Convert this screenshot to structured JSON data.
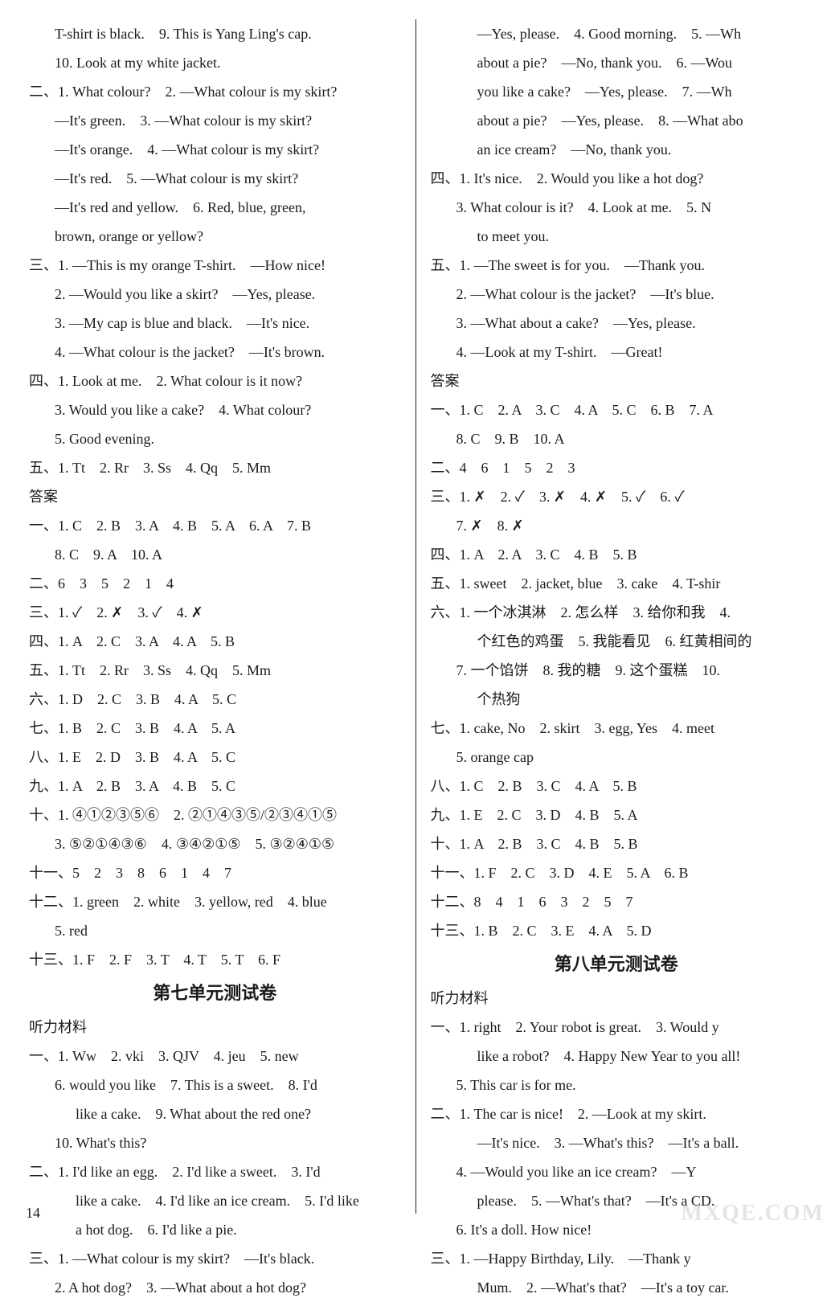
{
  "left": {
    "lines": [
      {
        "cls": "line noindent",
        "t": "T-shirt is black.　9. This is Yang Ling's cap."
      },
      {
        "cls": "line noindent",
        "t": "10. Look at my white jacket."
      },
      {
        "cls": "line",
        "t": "二、1. What colour?　2. —What colour is my skirt?"
      },
      {
        "cls": "line noindent",
        "t": "—It's green.　3. —What colour is my skirt?"
      },
      {
        "cls": "line noindent",
        "t": "—It's orange.　4. —What colour is my skirt?"
      },
      {
        "cls": "line noindent",
        "t": "—It's red.　5. —What colour is my skirt?"
      },
      {
        "cls": "line noindent",
        "t": "—It's red and yellow.　6. Red, blue, green,"
      },
      {
        "cls": "line noindent",
        "t": "brown, orange or yellow?"
      },
      {
        "cls": "line",
        "t": "三、1. —This is my orange T-shirt.　—How nice!"
      },
      {
        "cls": "line deep",
        "t": "2. —Would you like a skirt?　—Yes, please."
      },
      {
        "cls": "line deep",
        "t": "3. —My cap is blue and black.　—It's nice."
      },
      {
        "cls": "line deep",
        "t": "4. —What colour is the jacket?　—It's brown."
      },
      {
        "cls": "line",
        "t": "四、1. Look at me.　2. What colour is it now?"
      },
      {
        "cls": "line deep",
        "t": "3. Would you like a cake?　4. What colour?"
      },
      {
        "cls": "line deep",
        "t": "5. Good evening."
      },
      {
        "cls": "line",
        "t": "五、1. Tt　2. Rr　3. Ss　4. Qq　5. Mm"
      },
      {
        "cls": "subhead",
        "t": "答案"
      },
      {
        "cls": "line",
        "t": "一、1. C　2. B　3. A　4. B　5. A　6. A　7. B"
      },
      {
        "cls": "line deep",
        "t": "8. C　9. A　10. A"
      },
      {
        "cls": "line",
        "t": "二、6　3　5　2　1　4"
      },
      {
        "cls": "line",
        "t": "三、1. ✓　2. ✗　3. ✓　4. ✗"
      },
      {
        "cls": "line",
        "t": "四、1. A　2. C　3. A　4. A　5. B"
      },
      {
        "cls": "line",
        "t": "五、1. Tt　2. Rr　3. Ss　4. Qq　5. Mm"
      },
      {
        "cls": "line",
        "t": "六、1. D　2. C　3. B　4. A　5. C"
      },
      {
        "cls": "line",
        "t": "七、1. B　2. C　3. B　4. A　5. A"
      },
      {
        "cls": "line",
        "t": "八、1. E　2. D　3. B　4. A　5. C"
      },
      {
        "cls": "line",
        "t": "九、1. A　2. B　3. A　4. B　5. C"
      },
      {
        "cls": "line",
        "t": "十、1. ④①②③⑤⑥　2. ②①④③⑤/②③④①⑤"
      },
      {
        "cls": "line deep",
        "t": "3. ⑤②①④③⑥　4. ③④②①⑤　5. ③②④①⑤"
      },
      {
        "cls": "line",
        "t": "十一、5　2　3　8　6　1　4　7"
      },
      {
        "cls": "line",
        "t": "十二、1. green　2. white　3. yellow, red　4. blue"
      },
      {
        "cls": "line deep",
        "t": "5. red"
      },
      {
        "cls": "line",
        "t": "十三、1. F　2. F　3. T　4. T　5. T　6. F"
      },
      {
        "cls": "heading",
        "t": "第七单元测试卷"
      },
      {
        "cls": "subhead",
        "t": "听力材料"
      },
      {
        "cls": "line",
        "t": "一、1. Ww　2. vki　3. QJV　4. jeu　5. new"
      },
      {
        "cls": "line deep",
        "t": "6. would you like　7. This is a sweet.　8. I'd"
      },
      {
        "cls": "line deep2",
        "t": "like a cake.　9. What about the red one?"
      },
      {
        "cls": "line deep",
        "t": "10. What's this?"
      },
      {
        "cls": "line",
        "t": "二、1. I'd like an egg.　2. I'd like a sweet.　3. I'd"
      },
      {
        "cls": "line deep2",
        "t": "like a cake.　4. I'd like an ice cream.　5. I'd like"
      },
      {
        "cls": "line deep2",
        "t": "a hot dog.　6. I'd like a pie."
      },
      {
        "cls": "line",
        "t": "三、1. —What colour is my skirt?　—It's black."
      },
      {
        "cls": "line deep",
        "t": "2. A hot dog?　3. —What about a hot dog?"
      }
    ]
  },
  "right": {
    "lines": [
      {
        "cls": "line deep2",
        "t": "—Yes, please.　4. Good morning.　5. —Wh"
      },
      {
        "cls": "line deep2",
        "t": "about a pie?　—No, thank you.　6. —Wou"
      },
      {
        "cls": "line deep2",
        "t": "you like a cake?　—Yes, please.　7. —Wh"
      },
      {
        "cls": "line deep2",
        "t": "about a pie?　—Yes, please.　8. —What abo"
      },
      {
        "cls": "line deep2",
        "t": "an ice cream?　—No, thank you."
      },
      {
        "cls": "line",
        "t": "四、1. It's nice.　2. Would you like a hot dog?"
      },
      {
        "cls": "line deep",
        "t": "3. What colour is it?　4. Look at me.　5. N"
      },
      {
        "cls": "line deep2",
        "t": "to meet you."
      },
      {
        "cls": "line",
        "t": "五、1. —The sweet is for you.　—Thank you."
      },
      {
        "cls": "line deep",
        "t": "2. —What colour is the jacket?　—It's blue."
      },
      {
        "cls": "line deep",
        "t": "3. —What about a cake?　—Yes, please."
      },
      {
        "cls": "line deep",
        "t": "4. —Look at my T-shirt.　—Great!"
      },
      {
        "cls": "subhead",
        "t": "答案"
      },
      {
        "cls": "line",
        "t": "一、1. C　2. A　3. C　4. A　5. C　6. B　7. A"
      },
      {
        "cls": "line deep",
        "t": "8. C　9. B　10. A"
      },
      {
        "cls": "line",
        "t": "二、4　6　1　5　2　3"
      },
      {
        "cls": "line",
        "t": "三、1. ✗　2. ✓　3. ✗　4. ✗　5. ✓　6. ✓"
      },
      {
        "cls": "line deep",
        "t": "7. ✗　8. ✗"
      },
      {
        "cls": "line",
        "t": "四、1. A　2. A　3. C　4. B　5. B"
      },
      {
        "cls": "line",
        "t": "五、1. sweet　2. jacket, blue　3. cake　4. T-shir"
      },
      {
        "cls": "line",
        "t": "六、1. 一个冰淇淋　2. 怎么样　3. 给你和我　4."
      },
      {
        "cls": "line deep2",
        "t": "个红色的鸡蛋　5. 我能看见　6. 红黄相间的"
      },
      {
        "cls": "line deep",
        "t": "7. 一个馅饼　8. 我的糖　9. 这个蛋糕　10."
      },
      {
        "cls": "line deep2",
        "t": "个热狗"
      },
      {
        "cls": "line",
        "t": "七、1. cake, No　2. skirt　3. egg, Yes　4. meet"
      },
      {
        "cls": "line deep",
        "t": "5. orange cap"
      },
      {
        "cls": "line",
        "t": "八、1. C　2. B　3. C　4. A　5. B"
      },
      {
        "cls": "line",
        "t": "九、1. E　2. C　3. D　4. B　5. A"
      },
      {
        "cls": "line",
        "t": "十、1. A　2. B　3. C　4. B　5. B"
      },
      {
        "cls": "line",
        "t": "十一、1. F　2. C　3. D　4. E　5. A　6. B"
      },
      {
        "cls": "line",
        "t": "十二、8　4　1　6　3　2　5　7"
      },
      {
        "cls": "line",
        "t": "十三、1. B　2. C　3. E　4. A　5. D"
      },
      {
        "cls": "heading",
        "t": "第八单元测试卷"
      },
      {
        "cls": "subhead",
        "t": "听力材料"
      },
      {
        "cls": "line",
        "t": "一、1. right　2. Your robot is great.　3. Would y"
      },
      {
        "cls": "line deep2",
        "t": "like a robot?　4. Happy New Year to you all!"
      },
      {
        "cls": "line deep",
        "t": "5. This car is for me."
      },
      {
        "cls": "line",
        "t": "二、1. The car is nice!　2. —Look at my skirt."
      },
      {
        "cls": "line deep2",
        "t": "—It's nice.　3. —What's this?　—It's a ball."
      },
      {
        "cls": "line deep",
        "t": "4. —Would you like an ice cream?　—Y"
      },
      {
        "cls": "line deep2",
        "t": "please.　5. —What's that?　—It's a CD."
      },
      {
        "cls": "line deep",
        "t": "6. It's a doll. How nice!"
      },
      {
        "cls": "line",
        "t": "三、1. —Happy Birthday, Lily.　—Thank y"
      },
      {
        "cls": "line deep2",
        "t": "Mum.　2. —What's that?　—It's a toy car."
      }
    ]
  },
  "pageNumber": "14",
  "watermark": "MXQE.COM"
}
